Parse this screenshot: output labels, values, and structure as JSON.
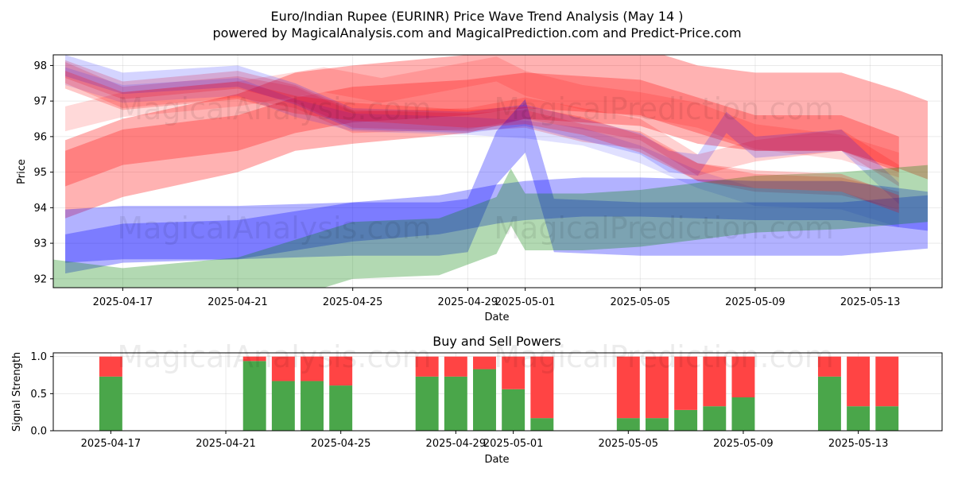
{
  "title_line1": "Euro/Indian Rupee (EURINR) Price Wave Trend Analysis (May 14 )",
  "title_line2": "powered by MagicalAnalysis.com and MagicalPrediction.com and Predict-Price.com",
  "watermark_left": "MagicalAnalysis.com",
  "watermark_right": "MagicalPrediction.com",
  "chart_data": [
    {
      "type": "area",
      "title": "",
      "xlabel": "Date",
      "ylabel": "Price",
      "xlim": [
        "2025-04-14T14:00",
        "2025-05-15T12:00"
      ],
      "ylim": [
        91.75,
        98.3
      ],
      "x_ticks": [
        "2025-04-17",
        "2025-04-21",
        "2025-04-25",
        "2025-04-29",
        "2025-05-01",
        "2025-05-05",
        "2025-05-09",
        "2025-05-13"
      ],
      "y_ticks": [
        92,
        93,
        94,
        95,
        96,
        97,
        98
      ],
      "grid": true,
      "colors": {
        "red": "#ff0000",
        "blue": "#0000ff",
        "green": "#008000"
      },
      "series": [
        {
          "color": "red",
          "opacity": 0.3,
          "width": 2.2,
          "x": [
            "2025-04-15",
            "2025-04-17",
            "2025-04-21",
            "2025-04-23",
            "2025-04-25",
            "2025-04-29",
            "2025-05-01",
            "2025-05-03",
            "2025-05-05",
            "2025-05-07",
            "2025-05-09",
            "2025-05-12",
            "2025-05-14",
            "2025-05-15"
          ],
          "y": [
            94.8,
            95.4,
            96.1,
            96.7,
            96.9,
            97.2,
            97.6,
            97.5,
            97.4,
            96.9,
            96.7,
            96.7,
            96.2,
            95.9
          ]
        },
        {
          "color": "red",
          "opacity": 0.28,
          "width": 1.0,
          "x": [
            "2025-04-15",
            "2025-04-17",
            "2025-04-21",
            "2025-04-23",
            "2025-04-25",
            "2025-04-29",
            "2025-05-01",
            "2025-05-03",
            "2025-05-05",
            "2025-05-07",
            "2025-05-09",
            "2025-05-12",
            "2025-05-14"
          ],
          "y": [
            95.1,
            95.7,
            96.1,
            96.6,
            96.9,
            97.1,
            97.3,
            97.2,
            97.1,
            96.6,
            96.1,
            96.1,
            95.5
          ]
        },
        {
          "color": "red",
          "opacity": 0.18,
          "width": 0.6,
          "x": [
            "2025-04-15",
            "2025-04-17",
            "2025-04-21",
            "2025-04-23",
            "2025-04-25",
            "2025-04-29",
            "2025-05-01",
            "2025-05-03",
            "2025-05-05",
            "2025-05-07",
            "2025-05-09",
            "2025-05-12",
            "2025-05-14"
          ],
          "y": [
            97.8,
            97.1,
            97.4,
            97.1,
            96.4,
            96.5,
            96.8,
            96.5,
            96.2,
            95.2,
            95.6,
            95.9,
            94.9
          ]
        },
        {
          "color": "red",
          "opacity": 0.15,
          "width": 0.7,
          "x": [
            "2025-04-15",
            "2025-04-17",
            "2025-04-21",
            "2025-04-24",
            "2025-04-26",
            "2025-04-30",
            "2025-05-01",
            "2025-05-03",
            "2025-05-05",
            "2025-05-07",
            "2025-05-09",
            "2025-05-12",
            "2025-05-14"
          ],
          "y": [
            96.5,
            96.9,
            97.2,
            97.6,
            97.3,
            97.9,
            97.5,
            97.1,
            96.9,
            96.6,
            96.0,
            95.7,
            95.2
          ]
        },
        {
          "color": "red",
          "opacity": 0.2,
          "width": 0.5,
          "x": [
            "2025-04-15",
            "2025-04-17",
            "2025-04-21",
            "2025-04-23",
            "2025-04-25",
            "2025-04-29",
            "2025-05-01",
            "2025-05-03",
            "2025-05-05",
            "2025-05-07",
            "2025-05-09",
            "2025-05-12",
            "2025-05-14"
          ],
          "y": [
            97.9,
            97.3,
            97.6,
            97.2,
            96.5,
            96.4,
            96.5,
            96.1,
            95.9,
            95.0,
            94.7,
            94.6,
            94.2
          ]
        },
        {
          "color": "blue",
          "opacity": 0.17,
          "width": 0.6,
          "x": [
            "2025-04-15",
            "2025-04-17",
            "2025-04-21",
            "2025-04-23",
            "2025-04-25",
            "2025-04-29",
            "2025-05-01",
            "2025-05-03",
            "2025-05-05",
            "2025-05-06",
            "2025-05-07",
            "2025-05-08",
            "2025-05-09",
            "2025-05-12",
            "2025-05-14"
          ],
          "y": [
            98.0,
            97.5,
            97.7,
            97.2,
            96.5,
            96.4,
            96.6,
            96.2,
            95.8,
            95.3,
            95.2,
            96.4,
            95.7,
            95.9,
            94.4
          ]
        },
        {
          "color": "blue",
          "opacity": 0.12,
          "width": 0.5,
          "x": [
            "2025-04-15",
            "2025-04-17",
            "2025-04-21",
            "2025-04-23",
            "2025-04-25",
            "2025-04-29",
            "2025-05-01",
            "2025-05-03",
            "2025-05-05",
            "2025-05-07",
            "2025-05-09",
            "2025-05-12",
            "2025-05-14"
          ],
          "y": [
            97.7,
            97.2,
            97.4,
            96.8,
            96.4,
            96.3,
            96.2,
            96.0,
            95.5,
            94.8,
            94.3,
            94.2,
            93.7
          ]
        },
        {
          "color": "blue",
          "opacity": 0.3,
          "width": 1.5,
          "x": [
            "2025-04-15",
            "2025-04-17",
            "2025-04-21",
            "2025-04-25",
            "2025-04-28",
            "2025-04-29",
            "2025-04-30",
            "2025-05-01",
            "2025-05-02",
            "2025-05-05",
            "2025-05-09",
            "2025-05-12",
            "2025-05-15"
          ],
          "y": [
            93.2,
            93.3,
            93.3,
            93.4,
            93.4,
            93.5,
            95.4,
            96.3,
            93.5,
            93.4,
            93.4,
            93.4,
            93.6
          ]
        },
        {
          "color": "blue",
          "opacity": 0.3,
          "width": 1.1,
          "x": [
            "2025-04-15",
            "2025-04-17",
            "2025-04-21",
            "2025-04-25",
            "2025-04-28",
            "2025-04-30",
            "2025-05-01",
            "2025-05-03",
            "2025-05-05",
            "2025-05-09",
            "2025-05-12",
            "2025-05-15"
          ],
          "y": [
            92.7,
            93.0,
            93.1,
            93.6,
            93.8,
            94.1,
            94.2,
            94.3,
            94.3,
            94.2,
            94.2,
            93.9
          ]
        },
        {
          "color": "green",
          "opacity": 0.3,
          "width": 1.6,
          "x": [
            "2025-04-14",
            "2025-04-17",
            "2025-04-21",
            "2025-04-25",
            "2025-04-28",
            "2025-04-30",
            "2025-04-30T12:00",
            "2025-05-01",
            "2025-05-03",
            "2025-05-05",
            "2025-05-09",
            "2025-05-12",
            "2025-05-15"
          ],
          "y": [
            91.8,
            91.5,
            91.8,
            92.8,
            92.9,
            93.5,
            94.3,
            93.6,
            93.6,
            93.7,
            94.1,
            94.2,
            94.4
          ]
        },
        {
          "color": "red",
          "opacity": 0.22,
          "width": 0.5,
          "x": [
            "2025-04-15",
            "2025-04-17",
            "2025-04-21",
            "2025-04-23",
            "2025-04-25",
            "2025-04-29",
            "2025-05-01",
            "2025-05-03",
            "2025-05-05",
            "2025-05-07",
            "2025-05-09",
            "2025-05-12",
            "2025-05-14"
          ],
          "y": [
            97.6,
            97.0,
            97.3,
            96.9,
            96.7,
            96.5,
            96.6,
            96.3,
            95.8,
            95.0,
            94.8,
            94.7,
            94.1
          ]
        }
      ]
    },
    {
      "type": "bar",
      "title": "Buy and Sell Powers",
      "xlabel": "Date",
      "ylabel": "Signal Strength",
      "ylim": [
        0,
        1.05
      ],
      "y_ticks": [
        "0.0",
        "0.5",
        "1.0"
      ],
      "x_ticks": [
        "2025-04-17",
        "2025-04-21",
        "2025-04-25",
        "2025-04-29",
        "2025-05-01",
        "2025-05-05",
        "2025-05-09",
        "2025-05-13"
      ],
      "grid": true,
      "colors": {
        "buy": "#4aa64a",
        "sell": "#ff4444"
      },
      "categories": [
        "2025-04-17",
        "2025-04-22",
        "2025-04-23",
        "2025-04-24",
        "2025-04-25",
        "2025-04-28",
        "2025-04-29",
        "2025-04-30",
        "2025-05-01",
        "2025-05-02",
        "2025-05-05",
        "2025-05-06",
        "2025-05-07",
        "2025-05-08",
        "2025-05-09",
        "2025-05-12",
        "2025-05-13",
        "2025-05-14"
      ],
      "series": [
        {
          "name": "buy",
          "values": [
            0.73,
            0.94,
            0.67,
            0.67,
            0.61,
            0.73,
            0.73,
            0.83,
            0.56,
            0.17,
            0.17,
            0.17,
            0.28,
            0.33,
            0.45,
            0.73,
            0.33,
            0.33
          ]
        },
        {
          "name": "sell",
          "values": [
            0.27,
            0.06,
            0.33,
            0.33,
            0.39,
            0.27,
            0.27,
            0.17,
            0.44,
            0.83,
            0.83,
            0.83,
            0.72,
            0.67,
            0.55,
            0.27,
            0.67,
            0.67
          ]
        }
      ]
    }
  ]
}
